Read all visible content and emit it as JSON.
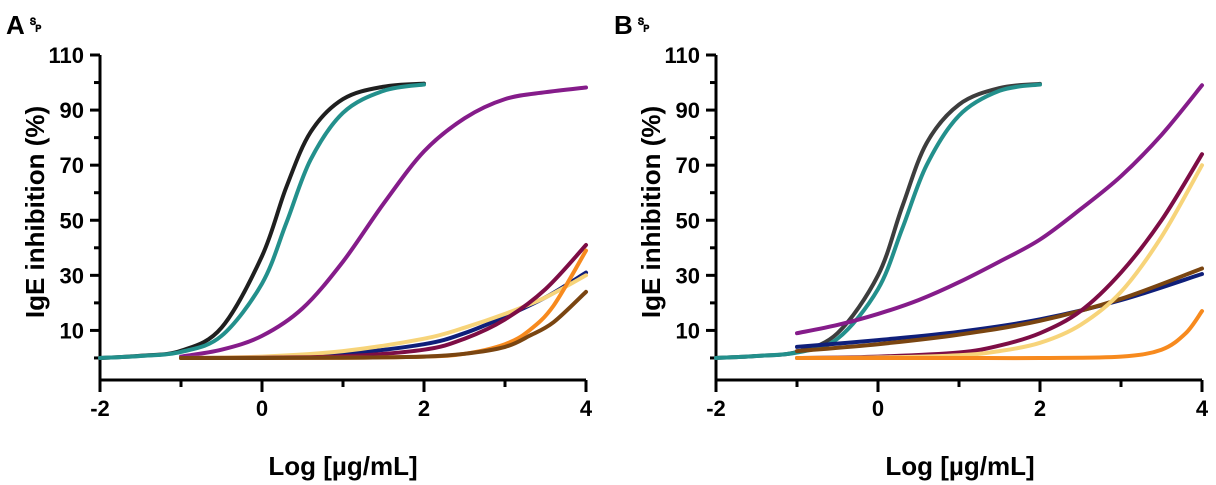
{
  "chart_data": [
    {
      "type": "line",
      "panel_label": "A␠",
      "xlabel": "Log [µg/mL]",
      "ylabel": "IgE inhibition (%)",
      "xlim": [
        -2,
        4
      ],
      "ylim": [
        -8,
        110
      ],
      "xticks": [
        -2,
        0,
        2,
        4
      ],
      "yticks": [
        10,
        30,
        50,
        70,
        90,
        110
      ],
      "series": [
        {
          "color": "#1f1f1f",
          "x": [
            -2.0,
            -1.5,
            -1.0,
            -0.5,
            0.0,
            0.3,
            0.6,
            1.0,
            1.5,
            2.0
          ],
          "y": [
            0.0,
            0.8,
            2.6,
            11.0,
            37.0,
            62.0,
            82.0,
            94.0,
            98.5,
            99.6
          ]
        },
        {
          "color": "#23908c",
          "x": [
            -2.0,
            -1.5,
            -1.0,
            -0.5,
            0.0,
            0.3,
            0.6,
            1.0,
            1.5,
            2.0
          ],
          "y": [
            0.0,
            0.7,
            2.2,
            8.0,
            27.0,
            49.0,
            72.0,
            89.0,
            97.0,
            99.3
          ]
        },
        {
          "color": "#851c8a",
          "x": [
            -1.0,
            -0.5,
            0.0,
            0.5,
            1.0,
            1.5,
            2.0,
            2.5,
            3.0,
            3.5,
            4.0
          ],
          "y": [
            0.5,
            3.0,
            8.0,
            18.0,
            35.0,
            56.0,
            75.0,
            87.0,
            94.0,
            96.5,
            98.2
          ]
        },
        {
          "color": "#0f1f7a",
          "x": [
            -1.0,
            0.0,
            1.0,
            2.0,
            2.5,
            3.0,
            3.5,
            4.0
          ],
          "y": [
            0.0,
            0.2,
            1.5,
            5.0,
            9.0,
            15.0,
            22.0,
            31.0
          ]
        },
        {
          "color": "#f7d47a",
          "x": [
            -1.0,
            0.0,
            1.0,
            2.0,
            2.5,
            3.0,
            3.5,
            4.0
          ],
          "y": [
            0.0,
            0.5,
            2.5,
            7.0,
            11.0,
            16.0,
            22.0,
            30.0
          ]
        },
        {
          "color": "#7d0d45",
          "x": [
            -1.0,
            0.0,
            1.0,
            2.0,
            2.5,
            3.0,
            3.5,
            4.0
          ],
          "y": [
            0.0,
            0.1,
            0.6,
            3.0,
            7.0,
            14.0,
            25.0,
            41.0
          ]
        },
        {
          "color": "#f78a1e",
          "x": [
            -1.0,
            0.0,
            1.0,
            2.0,
            2.5,
            3.0,
            3.3,
            3.6,
            4.0
          ],
          "y": [
            0.0,
            0.0,
            0.1,
            0.5,
            1.5,
            5.0,
            10.0,
            19.0,
            39.0
          ]
        },
        {
          "color": "#7a4511",
          "x": [
            -1.0,
            0.0,
            1.0,
            2.0,
            2.5,
            3.0,
            3.3,
            3.6,
            4.0
          ],
          "y": [
            0.0,
            0.0,
            0.1,
            0.5,
            1.5,
            4.0,
            8.0,
            13.0,
            24.0
          ]
        }
      ]
    },
    {
      "type": "line",
      "panel_label": "B␠",
      "xlabel": "Log [µg/mL]",
      "ylabel": "IgE inhibition (%)",
      "xlim": [
        -2,
        4
      ],
      "ylim": [
        -8,
        110
      ],
      "xticks": [
        -2,
        0,
        2,
        4
      ],
      "yticks": [
        10,
        30,
        50,
        70,
        90,
        110
      ],
      "series": [
        {
          "color": "#3d3d3d",
          "x": [
            -2.0,
            -1.5,
            -1.0,
            -0.5,
            0.0,
            0.3,
            0.6,
            1.0,
            1.5,
            2.0
          ],
          "y": [
            0.0,
            0.7,
            2.2,
            9.0,
            30.0,
            55.0,
            78.0,
            92.0,
            98.0,
            99.5
          ]
        },
        {
          "color": "#23908c",
          "x": [
            -2.0,
            -1.5,
            -1.0,
            -0.5,
            0.0,
            0.3,
            0.6,
            1.0,
            1.5,
            2.0
          ],
          "y": [
            0.0,
            0.7,
            2.0,
            7.0,
            25.0,
            47.0,
            70.0,
            88.0,
            97.0,
            99.3
          ]
        },
        {
          "color": "#851c8a",
          "x": [
            -1.0,
            -0.5,
            0.0,
            0.5,
            1.0,
            1.5,
            2.0,
            2.5,
            3.0,
            3.5,
            4.0
          ],
          "y": [
            9.0,
            12.0,
            16.0,
            21.0,
            27.5,
            35.0,
            43.0,
            54.0,
            66.0,
            81.0,
            99.0
          ]
        },
        {
          "color": "#0f1f7a",
          "x": [
            -1.0,
            0.0,
            1.0,
            2.0,
            3.0,
            4.0
          ],
          "y": [
            4.0,
            6.5,
            9.5,
            14.0,
            21.0,
            30.5
          ]
        },
        {
          "color": "#7a4511",
          "x": [
            -1.0,
            0.0,
            1.0,
            2.0,
            3.0,
            4.0
          ],
          "y": [
            2.5,
            5.0,
            8.5,
            13.5,
            21.5,
            32.5
          ]
        },
        {
          "color": "#7d0d45",
          "x": [
            -1.0,
            0.0,
            1.0,
            1.5,
            2.0,
            2.5,
            3.0,
            3.5,
            4.0
          ],
          "y": [
            0.0,
            0.5,
            2.0,
            4.5,
            9.0,
            17.0,
            31.0,
            50.0,
            74.0
          ]
        },
        {
          "color": "#f7d47a",
          "x": [
            -1.0,
            0.0,
            1.0,
            1.5,
            2.0,
            2.5,
            3.0,
            3.5,
            4.0
          ],
          "y": [
            0.0,
            0.2,
            1.0,
            2.5,
            5.5,
            12.0,
            24.0,
            44.0,
            70.0
          ]
        },
        {
          "color": "#f78a1e",
          "x": [
            -1.0,
            0.0,
            1.0,
            2.0,
            3.0,
            3.5,
            3.8,
            4.0
          ],
          "y": [
            0.0,
            0.0,
            0.0,
            0.0,
            0.5,
            3.0,
            9.0,
            17.0
          ]
        }
      ]
    }
  ]
}
